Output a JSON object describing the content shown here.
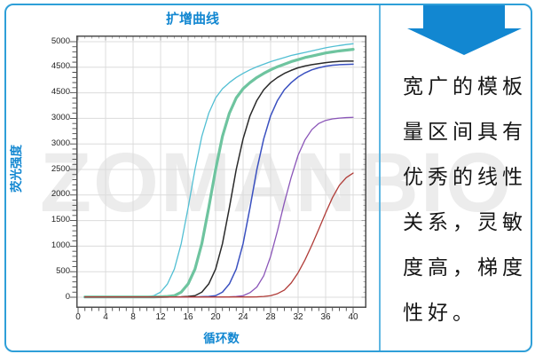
{
  "card": {
    "watermark": "ZOMANBIO",
    "border_color": "#2f9fd8"
  },
  "chart": {
    "title": "扩增曲线",
    "x_label": "循环数",
    "y_label": "荧光强度",
    "x_tick_labels": [
      "0",
      "4",
      "8",
      "12",
      "16",
      "20",
      "24",
      "28",
      "32",
      "36",
      "40"
    ],
    "y_tick_labels": [
      "5000",
      "4500",
      "4500",
      "3000",
      "3000",
      "2500",
      "2000",
      "1500",
      "1000",
      "500",
      "0"
    ],
    "title_color": "#1287d1",
    "grid_color": "#dcdcdc",
    "frame_color": "#4d4d4d"
  },
  "chart_data": {
    "type": "line",
    "title": "扩增曲线",
    "xlabel": "循环数",
    "ylabel": "荧光强度",
    "xlim": [
      0,
      40
    ],
    "ylim": [
      0,
      5000
    ],
    "grid": true,
    "legend": "none",
    "x_ticks": [
      0,
      4,
      8,
      12,
      16,
      20,
      24,
      28,
      32,
      36,
      40
    ],
    "y_ticks_shown": [
      "5000",
      "4500",
      "4500",
      "3000",
      "3000",
      "2500",
      "2000",
      "1500",
      "1000",
      "500",
      "0"
    ],
    "x": [
      1,
      2,
      3,
      4,
      5,
      6,
      7,
      8,
      9,
      10,
      11,
      12,
      13,
      14,
      15,
      16,
      17,
      18,
      19,
      20,
      21,
      22,
      23,
      24,
      25,
      26,
      27,
      28,
      29,
      30,
      31,
      32,
      33,
      34,
      35,
      36,
      37,
      38,
      39,
      40
    ],
    "series": [
      {
        "name": "curve-cyan",
        "color": "#52bfd3",
        "stroke_width": 1.3,
        "values": [
          5,
          5,
          5,
          5,
          5,
          5,
          5,
          5,
          5,
          10,
          30,
          100,
          260,
          550,
          1050,
          1750,
          2500,
          3150,
          3600,
          3900,
          4080,
          4200,
          4300,
          4380,
          4450,
          4510,
          4560,
          4610,
          4650,
          4690,
          4730,
          4760,
          4790,
          4820,
          4850,
          4880,
          4905,
          4925,
          4945,
          4960
        ]
      },
      {
        "name": "curve-green",
        "color": "#6ec49f",
        "stroke_width": 3.2,
        "values": [
          5,
          5,
          5,
          5,
          5,
          5,
          5,
          5,
          5,
          5,
          5,
          10,
          15,
          30,
          100,
          260,
          550,
          1050,
          1750,
          2500,
          3150,
          3600,
          3900,
          4080,
          4200,
          4300,
          4380,
          4450,
          4510,
          4560,
          4610,
          4650,
          4690,
          4720,
          4750,
          4780,
          4800,
          4820,
          4835,
          4850
        ]
      },
      {
        "name": "curve-black",
        "color": "#2a2a2a",
        "stroke_width": 1.5,
        "values": [
          5,
          5,
          5,
          5,
          5,
          5,
          5,
          5,
          5,
          5,
          5,
          5,
          5,
          5,
          8,
          15,
          30,
          100,
          260,
          550,
          1050,
          1750,
          2500,
          3100,
          3550,
          3850,
          4060,
          4200,
          4300,
          4380,
          4440,
          4490,
          4525,
          4550,
          4570,
          4590,
          4605,
          4615,
          4620,
          4620
        ]
      },
      {
        "name": "curve-blue",
        "color": "#3a50c0",
        "stroke_width": 1.5,
        "values": [
          5,
          5,
          5,
          5,
          5,
          5,
          5,
          5,
          5,
          5,
          5,
          5,
          5,
          5,
          5,
          5,
          5,
          10,
          15,
          30,
          100,
          260,
          550,
          1050,
          1750,
          2500,
          3100,
          3550,
          3850,
          4060,
          4200,
          4310,
          4390,
          4450,
          4490,
          4520,
          4540,
          4550,
          4555,
          4560
        ]
      },
      {
        "name": "curve-purple",
        "color": "#8a55b8",
        "stroke_width": 1.3,
        "values": [
          5,
          5,
          5,
          5,
          5,
          5,
          5,
          5,
          5,
          5,
          5,
          5,
          5,
          5,
          5,
          5,
          5,
          5,
          5,
          5,
          5,
          8,
          15,
          30,
          90,
          200,
          420,
          800,
          1300,
          1850,
          2350,
          2780,
          3080,
          3280,
          3400,
          3460,
          3490,
          3505,
          3515,
          3520
        ]
      },
      {
        "name": "curve-red",
        "color": "#b03c38",
        "stroke_width": 1.3,
        "values": [
          5,
          5,
          5,
          5,
          5,
          5,
          5,
          5,
          5,
          5,
          5,
          5,
          5,
          5,
          5,
          5,
          5,
          5,
          5,
          5,
          5,
          5,
          5,
          5,
          5,
          8,
          15,
          30,
          70,
          140,
          280,
          480,
          730,
          1020,
          1330,
          1650,
          1950,
          2190,
          2340,
          2430
        ]
      }
    ]
  },
  "panel": {
    "arrow_color": "#1287d1",
    "lines": [
      "宽广的模板",
      "量区间具有",
      "优秀的线性",
      "关系，灵敏",
      "度高，梯度",
      "性好。"
    ]
  }
}
